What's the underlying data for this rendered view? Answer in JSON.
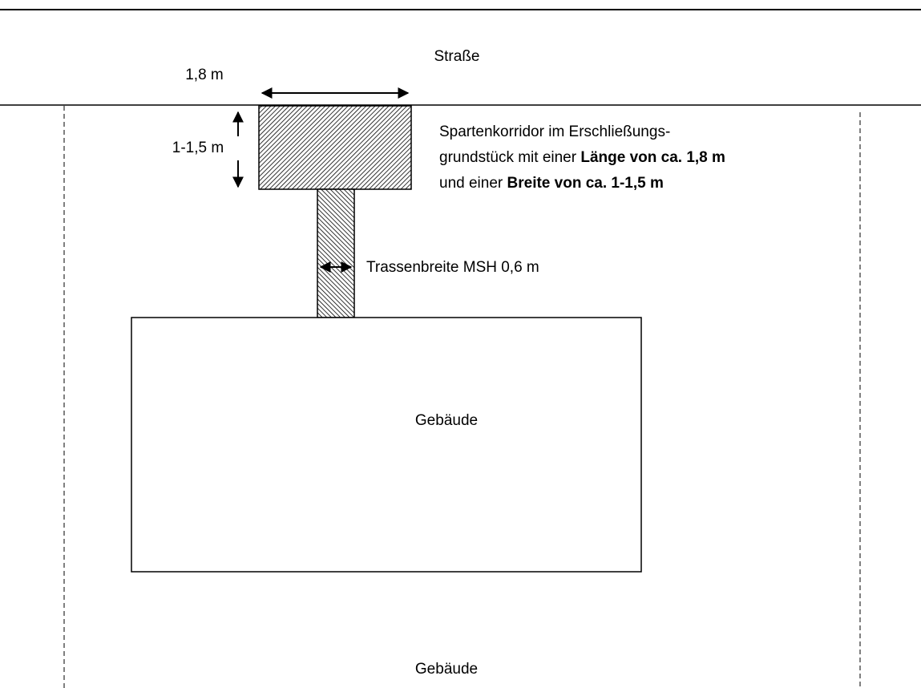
{
  "road": {
    "label": "Straße"
  },
  "corridor": {
    "length_label": "1,8 m",
    "width_label": "1-1,5 m",
    "description": [
      "Spartenkorridor im Erschließungs-",
      {
        "text": "grundstück mit einer ",
        "bold": "Länge von ca. 1,8 m"
      },
      {
        "text": "und einer ",
        "bold": "Breite von ca. 1-1,5 m"
      }
    ]
  },
  "trench": {
    "label": "Trassenbreite MSH 0,6 m"
  },
  "building": {
    "label": "Gebäude"
  },
  "lower_area": {
    "label": "Gebäude"
  }
}
